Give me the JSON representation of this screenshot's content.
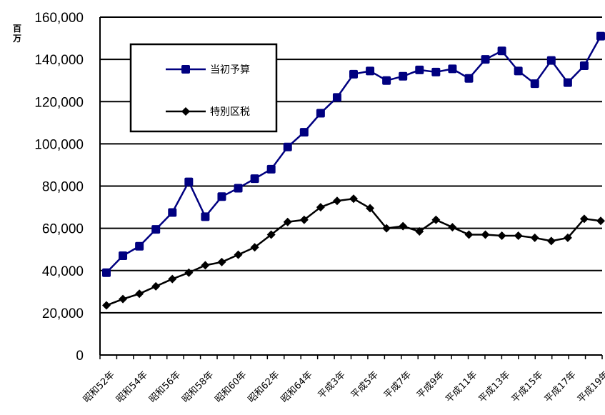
{
  "chart_data": {
    "type": "line",
    "unit_label": "百万",
    "y_ticks": [
      "160,000",
      "140,000",
      "120,000",
      "100,000",
      "80,000",
      "60,000",
      "40,000",
      "20,000",
      "0"
    ],
    "ylim": [
      0,
      160000
    ],
    "grid": true,
    "legend_position": "top-left",
    "categories": [
      "昭和52年",
      "",
      "昭和54年",
      "",
      "昭和56年",
      "",
      "昭和58年",
      "",
      "昭和60年",
      "",
      "昭和62年",
      "",
      "昭和64年",
      "",
      "平成3年",
      "",
      "平成5年",
      "",
      "平成7年",
      "",
      "平成9年",
      "",
      "平成11年",
      "",
      "平成13年",
      "",
      "平成15年",
      "",
      "平成17年",
      "",
      "平成19年"
    ],
    "series": [
      {
        "name": "当初予算",
        "color": "#000080",
        "marker": "square",
        "values": [
          39000,
          47000,
          51500,
          59500,
          67500,
          82000,
          65500,
          75000,
          79000,
          83500,
          88000,
          98500,
          105500,
          114500,
          122000,
          133000,
          134500,
          130000,
          132000,
          135000,
          134000,
          135500,
          131000,
          140000,
          144000,
          134500,
          128500,
          139500,
          129000,
          137000,
          151000
        ]
      },
      {
        "name": "特別区税",
        "color": "#000000",
        "marker": "diamond",
        "values": [
          23500,
          26500,
          29000,
          32500,
          36000,
          39000,
          42500,
          44000,
          47500,
          51000,
          57000,
          63000,
          64000,
          70000,
          73000,
          74000,
          69500,
          60000,
          61000,
          58500,
          64000,
          60500,
          57000,
          57000,
          56500,
          56500,
          55500,
          54000,
          55500,
          64500,
          63500
        ]
      }
    ]
  }
}
